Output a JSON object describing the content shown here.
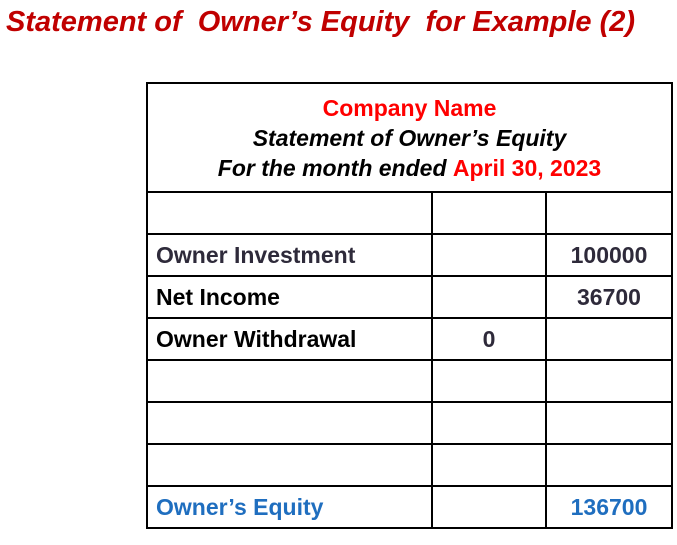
{
  "title": "Statement of  Owner’s Equity  for Example (2)",
  "statement": {
    "company": "Company Name",
    "name": "Statement of Owner’s Equity",
    "period_prefix": "For the month ended ",
    "period_date": "April 30, 2023",
    "columns": 3,
    "rows": [
      {
        "label": "",
        "col2": "",
        "col3": ""
      },
      {
        "label": "Owner Investment",
        "col2": "",
        "col3": "100000"
      },
      {
        "label": "Net Income",
        "col2": "",
        "col3": "36700"
      },
      {
        "label": "Owner Withdrawal",
        "col2": "0",
        "col3": ""
      },
      {
        "label": "",
        "col2": "",
        "col3": ""
      },
      {
        "label": "",
        "col2": "",
        "col3": ""
      },
      {
        "label": "",
        "col2": "",
        "col3": ""
      },
      {
        "label": "Owner’s Equity",
        "col2": "",
        "col3": "136700"
      }
    ]
  },
  "colors": {
    "title": "#c00000",
    "company": "#ff0000",
    "date": "#ff0000",
    "equity": "#1f6ebf",
    "text": "#000000"
  }
}
